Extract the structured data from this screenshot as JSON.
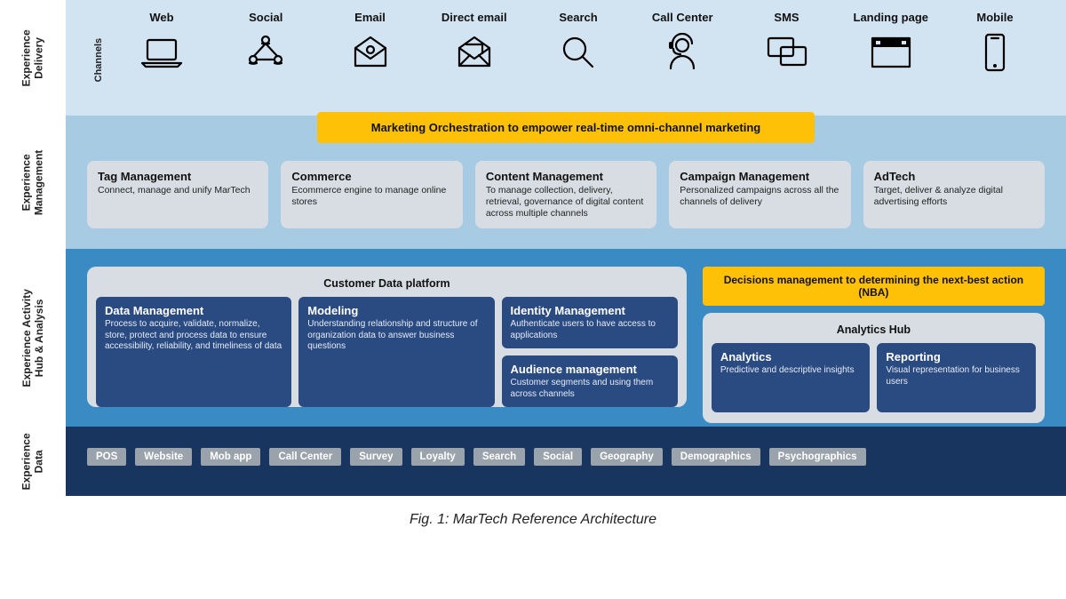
{
  "caption": "Fig. 1: MarTech Reference Architecture",
  "colors": {
    "row1_bg": "#d2e3f1",
    "row2_bg": "#a7cbe3",
    "row3_bg": "#3a8bc4",
    "row4_bg": "#17355e",
    "card_bg": "#d7dde3",
    "dark_card_bg": "#2a4a82",
    "banner_bg": "#ffc107",
    "chip_bg": "#9aa3ab",
    "text_dark": "#111111",
    "text_light": "#ffffff"
  },
  "rows": {
    "delivery": {
      "label": "Experience\nDelivery",
      "sublabel": "Channels",
      "channels": [
        {
          "label": "Web",
          "icon": "laptop"
        },
        {
          "label": "Social",
          "icon": "social"
        },
        {
          "label": "Email",
          "icon": "email"
        },
        {
          "label": "Direct email",
          "icon": "direct-email"
        },
        {
          "label": "Search",
          "icon": "search"
        },
        {
          "label": "Call Center",
          "icon": "headset"
        },
        {
          "label": "SMS",
          "icon": "sms"
        },
        {
          "label": "Landing page",
          "icon": "browser"
        },
        {
          "label": "Mobile",
          "icon": "mobile"
        }
      ]
    },
    "management": {
      "label": "Experience\nManagement",
      "banner": "Marketing Orchestration to empower real-time omni-channel marketing",
      "cards": [
        {
          "title": "Tag Management",
          "desc": "Connect, manage and unify MarTech"
        },
        {
          "title": "Commerce",
          "desc": "Ecommerce engine to manage online stores"
        },
        {
          "title": "Content Management",
          "desc": "To manage collection, delivery, retrieval, governance of digital content across multiple channels"
        },
        {
          "title": "Campaign Management",
          "desc": "Personalized campaigns across all the channels of delivery"
        },
        {
          "title": "AdTech",
          "desc": "Target, deliver & analyze digital advertising efforts"
        }
      ]
    },
    "activity": {
      "label": "Experience Activity\nHub & Analysis",
      "cdp": {
        "title": "Customer Data platform",
        "cards": {
          "data_mgmt": {
            "title": "Data Management",
            "desc": "Process to acquire, validate, normalize, store, protect and process data to ensure accessibility, reliability, and timeliness of data"
          },
          "identity": {
            "title": "Identity Management",
            "desc": "Authenticate users to have access to applications"
          },
          "audience": {
            "title": "Audience management",
            "desc": "Customer segments and using them across channels"
          },
          "modeling": {
            "title": "Modeling",
            "desc": "Understanding relationship and structure of organization data to answer business questions"
          }
        }
      },
      "hub": {
        "banner": "Decisions management to determining the next-best action (NBA)",
        "title": "Analytics Hub",
        "cards": {
          "analytics": {
            "title": "Analytics",
            "desc": "Predictive and descriptive insights"
          },
          "reporting": {
            "title": "Reporting",
            "desc": "Visual representation for business users"
          }
        }
      }
    },
    "data": {
      "label": "Experience\nData",
      "chips": [
        "POS",
        "Website",
        "Mob app",
        "Call Center",
        "Survey",
        "Loyalty",
        "Search",
        "Social",
        "Geography",
        "Demographics",
        "Psychographics"
      ]
    }
  }
}
